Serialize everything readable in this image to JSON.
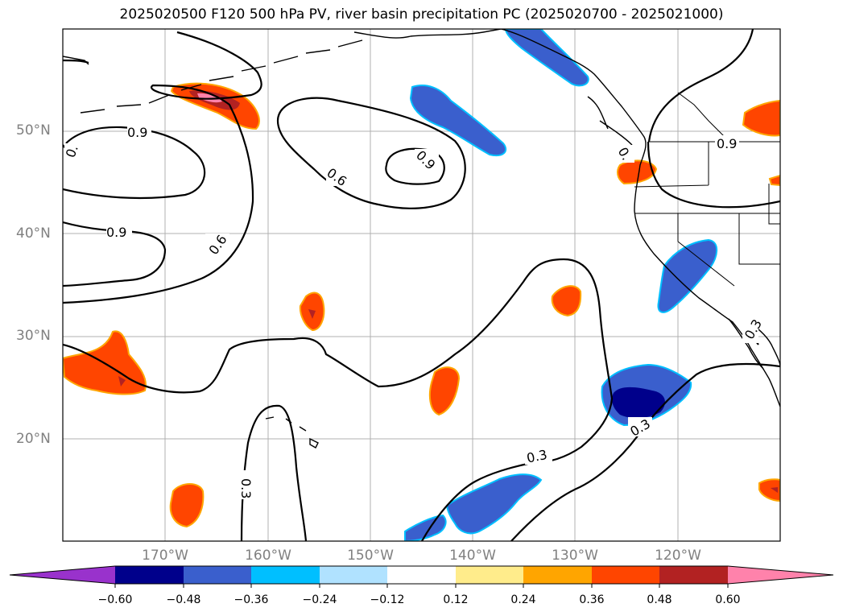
{
  "title": "2025020500 F120 500 hPa PV, river basin precipitation PC (2025020700 - 2025021000)",
  "map": {
    "lat_labels": [
      "50°N",
      "40°N",
      "30°N",
      "20°N"
    ],
    "lon_labels": [
      "170°W",
      "160°W",
      "150°W",
      "140°W",
      "130°W",
      "120°W"
    ],
    "contour_labels": [
      "0.9",
      "0.9",
      "0.9",
      "0.6",
      "0.6",
      "0.9",
      "0.3",
      "0.3",
      "0.3",
      "0.3",
      "0.",
      "0."
    ]
  },
  "colorbar": {
    "ticks": [
      "−0.60",
      "−0.48",
      "−0.36",
      "−0.24",
      "−0.12",
      "0.12",
      "0.24",
      "0.36",
      "0.48",
      "0.60"
    ],
    "colors": [
      "#9932cc",
      "#00008b",
      "#3a5fcd",
      "#00bfff",
      "#b0e2ff",
      "#ffffff",
      "#ffec8b",
      "#ffa500",
      "#ff4500",
      "#b22222",
      "#ff82ab"
    ]
  }
}
